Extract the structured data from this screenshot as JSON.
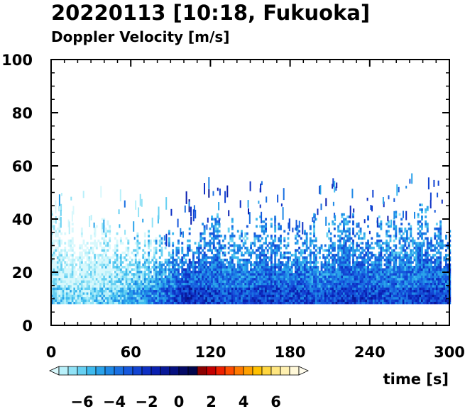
{
  "chart_data": {
    "type": "heatmap",
    "title": "20220113 [10:18, Fukuoka]",
    "subtitle": "Doppler Velocity [m/s]",
    "xlabel": "time [s]",
    "ylabel": "",
    "xlim": [
      0,
      300
    ],
    "ylim": [
      0,
      100
    ],
    "x_ticks": [
      0,
      60,
      120,
      180,
      240,
      300
    ],
    "y_ticks": [
      0,
      20,
      40,
      60,
      80,
      100
    ],
    "grid": false,
    "data_floor_height": 8,
    "colorbar": {
      "range": [
        -8,
        8
      ],
      "ticks": [
        -6,
        -4,
        -2,
        0,
        2,
        4,
        6
      ],
      "tick_labels": [
        "−6",
        "−4",
        "−2",
        "0",
        "2",
        "4",
        "6"
      ],
      "colors": [
        "#d8f8fc",
        "#b8f0fa",
        "#90e2f6",
        "#66d0f2",
        "#3ebaee",
        "#2aa2ea",
        "#1e88e6",
        "#1a70e2",
        "#1658dc",
        "#1244d2",
        "#0e30c4",
        "#0a20b0",
        "#081898",
        "#061080",
        "#040a66",
        "#02064c",
        "#8c0000",
        "#c40000",
        "#ee2000",
        "#ff4c00",
        "#ff7a00",
        "#ffa000",
        "#ffc000",
        "#ffd640",
        "#ffe680",
        "#fff0b0",
        "#fff8d8",
        "#fffcec"
      ]
    },
    "velocity_profile": [
      {
        "t": 0,
        "top": 38,
        "v": -6.5
      },
      {
        "t": 20,
        "top": 32,
        "v": -7.0
      },
      {
        "t": 40,
        "top": 34,
        "v": -6.5
      },
      {
        "t": 60,
        "top": 30,
        "v": -5.5
      },
      {
        "t": 80,
        "top": 28,
        "v": -4.5
      },
      {
        "t": 100,
        "top": 33,
        "v": -2.5
      },
      {
        "t": 120,
        "top": 36,
        "v": -3.0
      },
      {
        "t": 140,
        "top": 34,
        "v": -3.5
      },
      {
        "t": 160,
        "top": 38,
        "v": -3.0
      },
      {
        "t": 180,
        "top": 32,
        "v": -3.0
      },
      {
        "t": 200,
        "top": 36,
        "v": -3.5
      },
      {
        "t": 220,
        "top": 38,
        "v": -3.0
      },
      {
        "t": 240,
        "top": 34,
        "v": -3.0
      },
      {
        "t": 260,
        "top": 36,
        "v": -3.5
      },
      {
        "t": 280,
        "top": 40,
        "v": -3.0
      },
      {
        "t": 300,
        "top": 38,
        "v": -3.0
      }
    ]
  }
}
